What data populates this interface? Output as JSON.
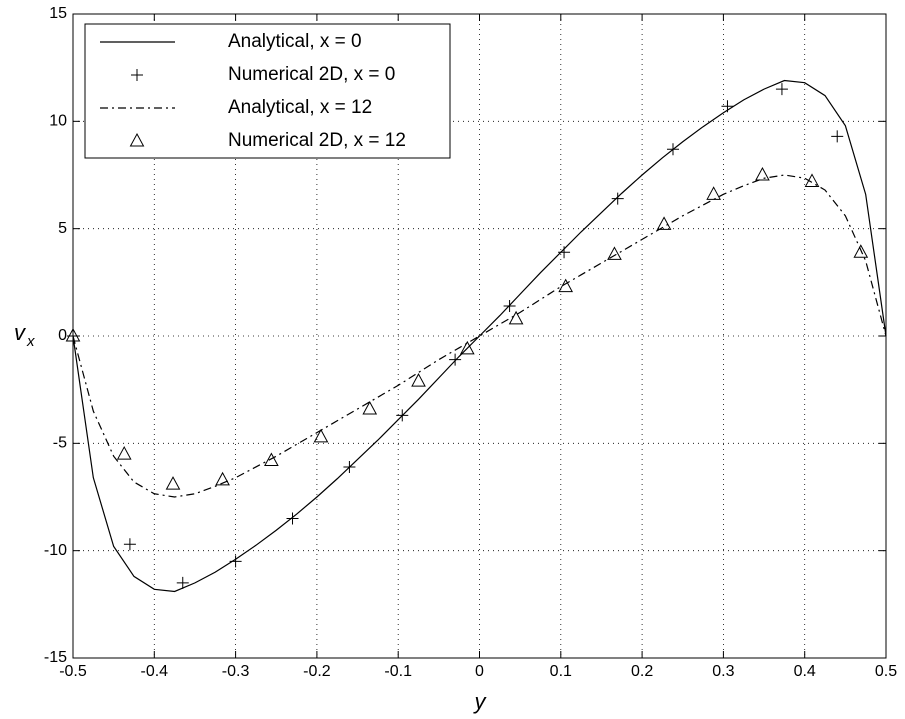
{
  "chart_data": {
    "type": "line",
    "xlabel": "y",
    "ylabel": "v",
    "ylabel_subscript": "x",
    "xlim": [
      -0.5,
      0.5
    ],
    "xticks": [
      -0.5,
      -0.4,
      -0.3,
      -0.2,
      -0.1,
      0,
      0.1,
      0.2,
      0.3,
      0.4,
      0.5
    ],
    "ylim": [
      -15,
      15
    ],
    "yticks": [
      -15,
      -10,
      -5,
      0,
      5,
      10,
      15
    ],
    "grid": true,
    "legend": "upper left",
    "series": [
      {
        "name": "Analytical, x = 0",
        "color": "#000000",
        "line_style": "solid",
        "marker": "none",
        "x": [
          -0.5,
          -0.475,
          -0.45,
          -0.425,
          -0.4,
          -0.375,
          -0.35,
          -0.325,
          -0.3,
          -0.275,
          -0.25,
          -0.225,
          -0.2,
          -0.175,
          -0.15,
          -0.125,
          -0.1,
          -0.075,
          -0.05,
          -0.025,
          0,
          0.025,
          0.05,
          0.075,
          0.1,
          0.125,
          0.15,
          0.175,
          0.2,
          0.225,
          0.25,
          0.275,
          0.3,
          0.325,
          0.35,
          0.375,
          0.4,
          0.425,
          0.45,
          0.475,
          0.5
        ],
        "values": [
          0,
          -6.6,
          -9.8,
          -11.2,
          -11.8,
          -11.9,
          -11.5,
          -11.0,
          -10.4,
          -9.75,
          -9.05,
          -8.3,
          -7.5,
          -6.65,
          -5.75,
          -4.85,
          -3.9,
          -2.95,
          -1.95,
          -0.95,
          0,
          0.95,
          1.95,
          2.95,
          3.9,
          4.85,
          5.75,
          6.65,
          7.5,
          8.3,
          9.05,
          9.75,
          10.4,
          11.0,
          11.5,
          11.9,
          11.8,
          11.2,
          9.8,
          6.6,
          0
        ]
      },
      {
        "name": "Numerical 2D, x = 0",
        "color": "#000000",
        "line_style": "none",
        "marker": "plus",
        "x": [
          -0.5,
          -0.43,
          -0.365,
          -0.3,
          -0.23,
          -0.16,
          -0.095,
          -0.03,
          0.037,
          0.104,
          0.17,
          0.238,
          0.305,
          0.372,
          0.44
        ],
        "values": [
          0,
          -9.7,
          -11.5,
          -10.5,
          -8.5,
          -6.1,
          -3.7,
          -1.1,
          1.4,
          3.9,
          6.4,
          8.7,
          10.7,
          11.5,
          9.3
        ]
      },
      {
        "name": "Analytical, x = 12",
        "color": "#000000",
        "line_style": "dashdot",
        "marker": "none",
        "x": [
          -0.5,
          -0.475,
          -0.45,
          -0.425,
          -0.4,
          -0.375,
          -0.35,
          -0.325,
          -0.3,
          -0.275,
          -0.25,
          -0.225,
          -0.2,
          -0.175,
          -0.15,
          -0.125,
          -0.1,
          -0.075,
          -0.05,
          -0.025,
          0,
          0.025,
          0.05,
          0.075,
          0.1,
          0.125,
          0.15,
          0.175,
          0.2,
          0.225,
          0.25,
          0.275,
          0.3,
          0.325,
          0.35,
          0.375,
          0.4,
          0.425,
          0.45,
          0.475,
          0.5
        ],
        "values": [
          0,
          -3.5,
          -5.6,
          -6.8,
          -7.35,
          -7.5,
          -7.35,
          -7.0,
          -6.6,
          -6.1,
          -5.6,
          -5.05,
          -4.5,
          -3.95,
          -3.4,
          -2.85,
          -2.3,
          -1.7,
          -1.1,
          -0.55,
          0,
          0.55,
          1.1,
          1.7,
          2.3,
          2.85,
          3.4,
          3.95,
          4.5,
          5.05,
          5.6,
          6.1,
          6.6,
          7.0,
          7.35,
          7.5,
          7.35,
          6.8,
          5.6,
          3.5,
          0
        ]
      },
      {
        "name": "Numerical 2D, x = 12",
        "color": "#000000",
        "line_style": "none",
        "marker": "triangle",
        "x": [
          -0.5,
          -0.437,
          -0.377,
          -0.316,
          -0.256,
          -0.195,
          -0.135,
          -0.075,
          -0.015,
          0.045,
          0.106,
          0.166,
          0.227,
          0.288,
          0.348,
          0.409,
          0.469
        ],
        "values": [
          0,
          -5.5,
          -6.9,
          -6.7,
          -5.8,
          -4.7,
          -3.4,
          -2.1,
          -0.6,
          0.8,
          2.3,
          3.8,
          5.2,
          6.6,
          7.5,
          7.2,
          3.9
        ]
      }
    ]
  }
}
